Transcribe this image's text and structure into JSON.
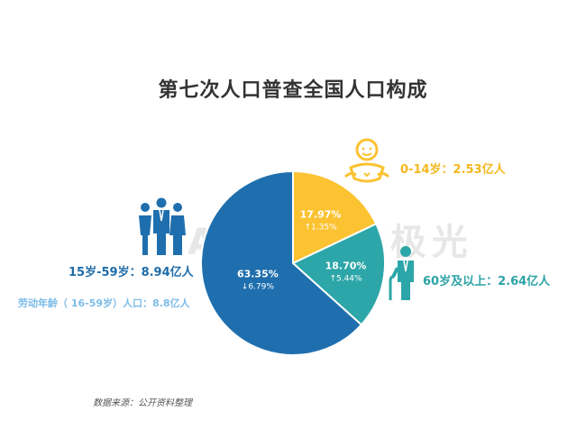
{
  "title": "第七次人口普查全国人口构成",
  "watermark": "AURORA极光",
  "source": "数据来源：公开资料整理",
  "labels": {
    "kids": "0-14岁：2.53亿人",
    "elder": "60岁及以上：2.64亿人",
    "adult": "15岁-59岁：8.94亿人",
    "labor": "劳动年龄（ 16-59岁）人口：8.8亿人"
  },
  "colors": {
    "kids": "#FBC232",
    "elder": "#2CA6A8",
    "adult": "#1F6FAE",
    "title": "#333333"
  },
  "icons": {
    "kids": "baby-icon",
    "elder": "elderly-person-icon",
    "adult": "family-adults-icon"
  },
  "chart_data": {
    "type": "pie",
    "title": "第七次人口普查全国人口构成",
    "slices": [
      {
        "name": "0-14岁",
        "value": 17.97,
        "label": "17.97%",
        "change": "↑1.35%",
        "color": "#FBC232"
      },
      {
        "name": "60岁及以上",
        "value": 18.7,
        "label": "18.70%",
        "change": "↑5.44%",
        "color": "#2CA6A8"
      },
      {
        "name": "15岁-59岁",
        "value": 63.35,
        "label": "63.35%",
        "change": "↓6.79%",
        "color": "#1F6FAE"
      }
    ]
  }
}
